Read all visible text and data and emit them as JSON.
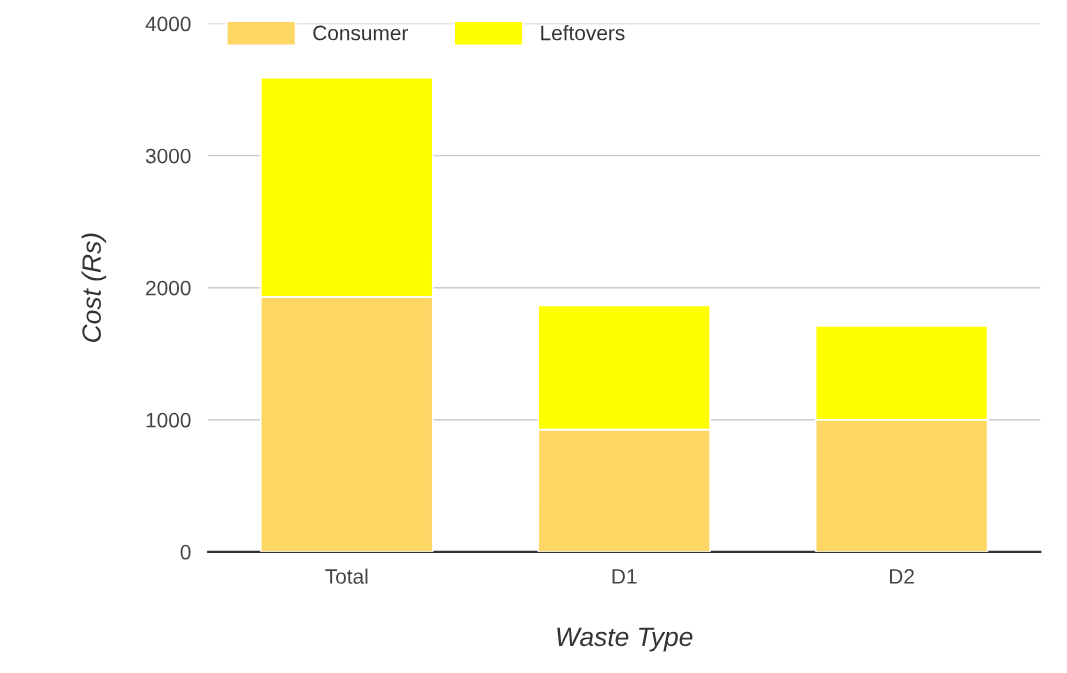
{
  "chart_data": {
    "type": "bar",
    "stacked": true,
    "xlabel": "Waste Type",
    "ylabel": "Cost (Rs)",
    "categories": [
      "Total",
      "D1",
      "D2"
    ],
    "series": [
      {
        "name": "Consumer",
        "color": "#fdd663",
        "values": [
          1930,
          925,
          1000
        ]
      },
      {
        "name": "Leftovers",
        "color": "#ffff00",
        "values": [
          1660,
          940,
          710
        ]
      }
    ],
    "ylim": [
      0,
      4000
    ],
    "yticks": [
      0,
      1000,
      2000,
      3000,
      4000
    ],
    "grid": "y",
    "legend": "top left"
  }
}
